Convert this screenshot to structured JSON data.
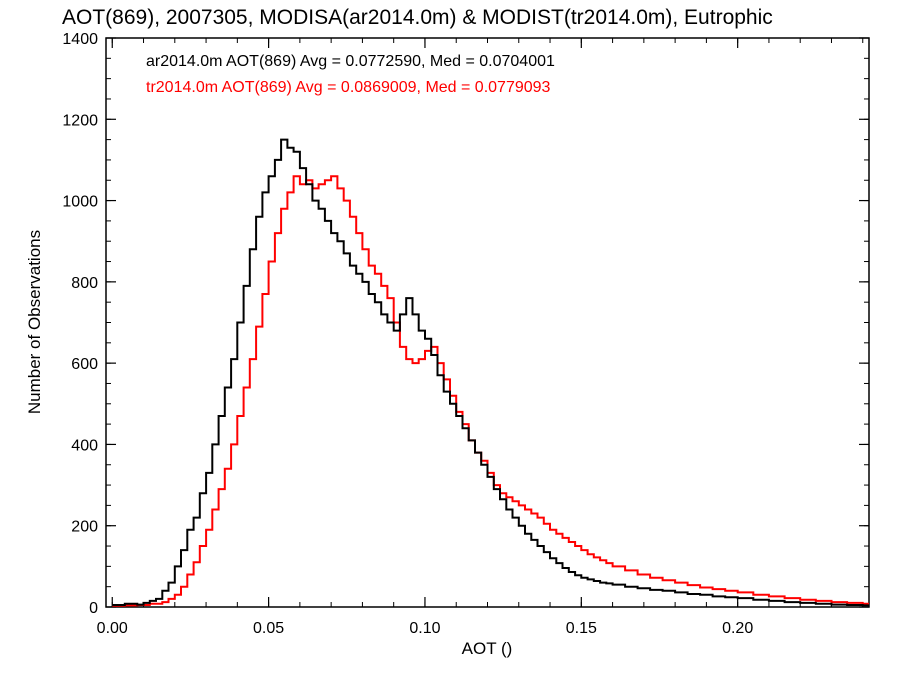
{
  "chart_data": {
    "type": "line",
    "title": "AOT(869), 2007305, MODISA(ar2014.0m) & MODIST(tr2014.0m), Eutrophic",
    "xlabel": "AOT ()",
    "ylabel": "Number of Observations",
    "xlim": [
      -0.002,
      0.242
    ],
    "ylim": [
      0,
      1400
    ],
    "xticks": [
      0.0,
      0.05,
      0.1,
      0.15,
      0.2
    ],
    "xtick_labels": [
      "0.00",
      "0.05",
      "0.10",
      "0.15",
      "0.20"
    ],
    "yticks": [
      0,
      200,
      400,
      600,
      800,
      1000,
      1200,
      1400
    ],
    "ytick_labels": [
      "0",
      "200",
      "400",
      "600",
      "800",
      "1000",
      "1200",
      "1400"
    ],
    "grid": false,
    "legend_placement": "top-left",
    "series": [
      {
        "name": "ar2014.0m",
        "color": "#000000",
        "stats_text": "ar2014.0m AOT(869) Avg = 0.0772590, Med = 0.0704001",
        "points": [
          [
            0.0,
            5
          ],
          [
            0.004,
            8
          ],
          [
            0.008,
            6
          ],
          [
            0.01,
            10
          ],
          [
            0.012,
            15
          ],
          [
            0.014,
            20
          ],
          [
            0.016,
            40
          ],
          [
            0.018,
            60
          ],
          [
            0.02,
            100
          ],
          [
            0.022,
            140
          ],
          [
            0.024,
            190
          ],
          [
            0.026,
            220
          ],
          [
            0.028,
            280
          ],
          [
            0.03,
            330
          ],
          [
            0.032,
            400
          ],
          [
            0.034,
            470
          ],
          [
            0.036,
            540
          ],
          [
            0.038,
            610
          ],
          [
            0.04,
            700
          ],
          [
            0.042,
            790
          ],
          [
            0.044,
            880
          ],
          [
            0.046,
            960
          ],
          [
            0.048,
            1020
          ],
          [
            0.05,
            1060
          ],
          [
            0.052,
            1100
          ],
          [
            0.054,
            1150
          ],
          [
            0.056,
            1130
          ],
          [
            0.058,
            1120
          ],
          [
            0.06,
            1080
          ],
          [
            0.062,
            1040
          ],
          [
            0.064,
            1000
          ],
          [
            0.066,
            980
          ],
          [
            0.068,
            950
          ],
          [
            0.07,
            920
          ],
          [
            0.072,
            900
          ],
          [
            0.074,
            870
          ],
          [
            0.076,
            840
          ],
          [
            0.078,
            820
          ],
          [
            0.08,
            800
          ],
          [
            0.082,
            770
          ],
          [
            0.084,
            750
          ],
          [
            0.086,
            720
          ],
          [
            0.088,
            700
          ],
          [
            0.09,
            680
          ],
          [
            0.092,
            720
          ],
          [
            0.094,
            760
          ],
          [
            0.096,
            720
          ],
          [
            0.098,
            680
          ],
          [
            0.1,
            660
          ],
          [
            0.102,
            620
          ],
          [
            0.104,
            570
          ],
          [
            0.106,
            530
          ],
          [
            0.108,
            500
          ],
          [
            0.11,
            470
          ],
          [
            0.112,
            440
          ],
          [
            0.114,
            410
          ],
          [
            0.116,
            380
          ],
          [
            0.118,
            350
          ],
          [
            0.12,
            320
          ],
          [
            0.122,
            290
          ],
          [
            0.124,
            265
          ],
          [
            0.126,
            240
          ],
          [
            0.128,
            220
          ],
          [
            0.13,
            200
          ],
          [
            0.132,
            180
          ],
          [
            0.134,
            165
          ],
          [
            0.136,
            150
          ],
          [
            0.138,
            135
          ],
          [
            0.14,
            120
          ],
          [
            0.142,
            108
          ],
          [
            0.144,
            96
          ],
          [
            0.146,
            86
          ],
          [
            0.148,
            78
          ],
          [
            0.15,
            72
          ],
          [
            0.152,
            68
          ],
          [
            0.154,
            64
          ],
          [
            0.156,
            60
          ],
          [
            0.158,
            58
          ],
          [
            0.16,
            55
          ],
          [
            0.164,
            50
          ],
          [
            0.168,
            46
          ],
          [
            0.172,
            42
          ],
          [
            0.176,
            40
          ],
          [
            0.18,
            36
          ],
          [
            0.184,
            32
          ],
          [
            0.188,
            30
          ],
          [
            0.192,
            26
          ],
          [
            0.196,
            24
          ],
          [
            0.2,
            22
          ],
          [
            0.205,
            18
          ],
          [
            0.21,
            15
          ],
          [
            0.215,
            12
          ],
          [
            0.22,
            10
          ],
          [
            0.225,
            8
          ],
          [
            0.23,
            6
          ],
          [
            0.235,
            5
          ],
          [
            0.24,
            4
          ]
        ]
      },
      {
        "name": "tr2014.0m",
        "color": "#ff0000",
        "stats_text": "tr2014.0m AOT(869) Avg = 0.0869009, Med = 0.0779093",
        "points": [
          [
            0.0,
            3
          ],
          [
            0.004,
            4
          ],
          [
            0.008,
            5
          ],
          [
            0.012,
            8
          ],
          [
            0.016,
            12
          ],
          [
            0.018,
            20
          ],
          [
            0.02,
            30
          ],
          [
            0.022,
            50
          ],
          [
            0.024,
            80
          ],
          [
            0.026,
            110
          ],
          [
            0.028,
            150
          ],
          [
            0.03,
            190
          ],
          [
            0.032,
            240
          ],
          [
            0.034,
            290
          ],
          [
            0.036,
            340
          ],
          [
            0.038,
            400
          ],
          [
            0.04,
            470
          ],
          [
            0.042,
            540
          ],
          [
            0.044,
            610
          ],
          [
            0.046,
            690
          ],
          [
            0.048,
            770
          ],
          [
            0.05,
            850
          ],
          [
            0.052,
            920
          ],
          [
            0.054,
            980
          ],
          [
            0.056,
            1020
          ],
          [
            0.058,
            1060
          ],
          [
            0.06,
            1040
          ],
          [
            0.062,
            1050
          ],
          [
            0.064,
            1030
          ],
          [
            0.066,
            1040
          ],
          [
            0.068,
            1050
          ],
          [
            0.07,
            1060
          ],
          [
            0.072,
            1030
          ],
          [
            0.074,
            1000
          ],
          [
            0.076,
            960
          ],
          [
            0.078,
            920
          ],
          [
            0.08,
            880
          ],
          [
            0.082,
            840
          ],
          [
            0.084,
            820
          ],
          [
            0.086,
            790
          ],
          [
            0.088,
            760
          ],
          [
            0.09,
            700
          ],
          [
            0.092,
            640
          ],
          [
            0.094,
            610
          ],
          [
            0.096,
            600
          ],
          [
            0.098,
            610
          ],
          [
            0.1,
            630
          ],
          [
            0.102,
            640
          ],
          [
            0.104,
            600
          ],
          [
            0.106,
            560
          ],
          [
            0.108,
            520
          ],
          [
            0.11,
            480
          ],
          [
            0.112,
            450
          ],
          [
            0.114,
            410
          ],
          [
            0.116,
            380
          ],
          [
            0.118,
            360
          ],
          [
            0.12,
            330
          ],
          [
            0.122,
            300
          ],
          [
            0.124,
            280
          ],
          [
            0.126,
            270
          ],
          [
            0.128,
            260
          ],
          [
            0.13,
            250
          ],
          [
            0.132,
            240
          ],
          [
            0.134,
            230
          ],
          [
            0.136,
            220
          ],
          [
            0.138,
            205
          ],
          [
            0.14,
            190
          ],
          [
            0.142,
            180
          ],
          [
            0.144,
            170
          ],
          [
            0.146,
            160
          ],
          [
            0.148,
            150
          ],
          [
            0.15,
            140
          ],
          [
            0.152,
            130
          ],
          [
            0.154,
            122
          ],
          [
            0.156,
            115
          ],
          [
            0.158,
            108
          ],
          [
            0.16,
            100
          ],
          [
            0.164,
            90
          ],
          [
            0.168,
            80
          ],
          [
            0.172,
            72
          ],
          [
            0.176,
            66
          ],
          [
            0.18,
            60
          ],
          [
            0.184,
            54
          ],
          [
            0.188,
            48
          ],
          [
            0.192,
            44
          ],
          [
            0.196,
            40
          ],
          [
            0.2,
            36
          ],
          [
            0.205,
            30
          ],
          [
            0.21,
            26
          ],
          [
            0.215,
            22
          ],
          [
            0.22,
            18
          ],
          [
            0.225,
            15
          ],
          [
            0.23,
            12
          ],
          [
            0.235,
            10
          ],
          [
            0.24,
            8
          ]
        ]
      }
    ]
  }
}
